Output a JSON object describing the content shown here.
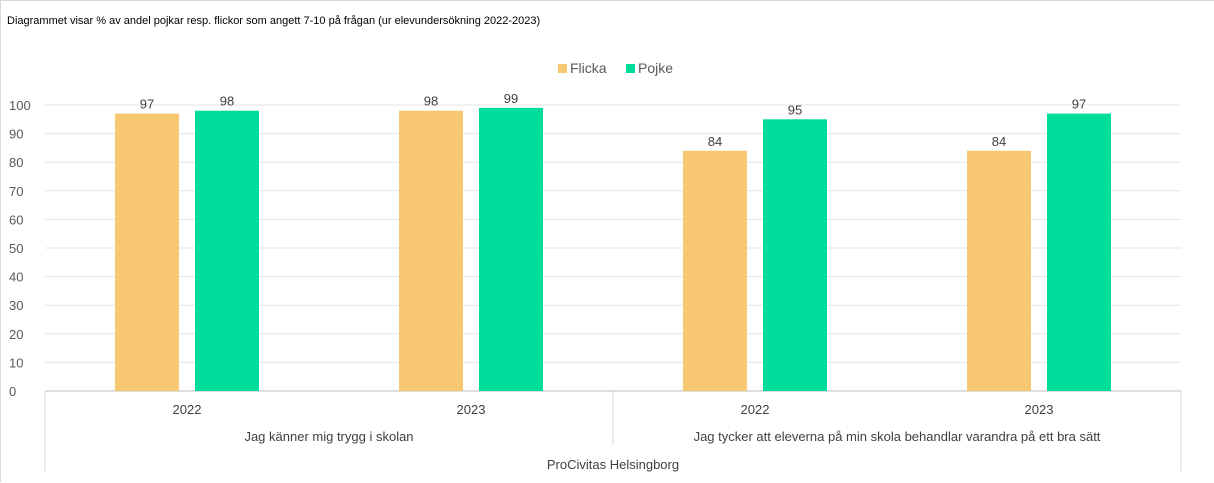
{
  "chart_data": {
    "type": "bar",
    "title": "Diagrammet visar % av andel pojkar resp. flickor som angett 7-10 på frågan (ur elevundersökning 2022-2023)",
    "categories": [
      "2022",
      "2023",
      "2022",
      "2023"
    ],
    "groups": [
      {
        "label": "Jag känner mig trygg i skolan",
        "categories": [
          "2022",
          "2023"
        ]
      },
      {
        "label": "Jag tycker att eleverna på min skola behandlar varandra på ett bra sätt",
        "categories": [
          "2022",
          "2023"
        ]
      }
    ],
    "top_group": "ProCivitas Helsingborg",
    "series": [
      {
        "name": "Flicka",
        "color": "#f8c771",
        "values": [
          97,
          98,
          84,
          84
        ]
      },
      {
        "name": "Pojke",
        "color": "#00dc9a",
        "values": [
          98,
          99,
          95,
          97
        ]
      }
    ],
    "ylim": [
      0,
      100
    ],
    "yticks": [
      0,
      10,
      20,
      30,
      40,
      50,
      60,
      70,
      80,
      90,
      100
    ],
    "grid": true,
    "legend": "top-center",
    "xlabel": "",
    "ylabel": ""
  }
}
